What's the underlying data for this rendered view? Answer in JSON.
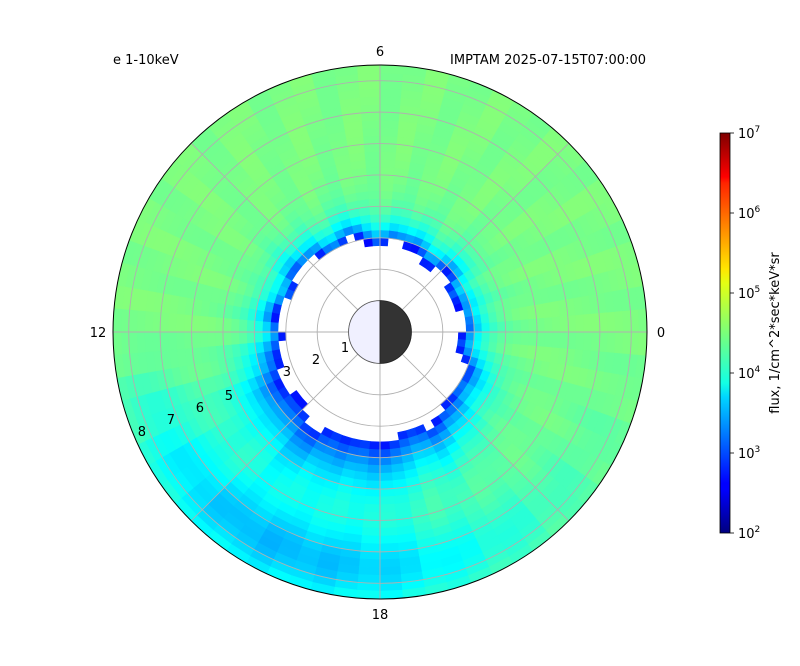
{
  "chart_data": {
    "type": "heatmap",
    "title_left": "e 1-10keV",
    "title_right": "IMPTAM 2025-07-15T07:00:00",
    "projection": "polar",
    "mlt_labels": [
      "6",
      "12",
      "18",
      "0"
    ],
    "radial_ticks": [
      "1",
      "2",
      "3",
      "5",
      "6",
      "7",
      "8"
    ],
    "radial_max": 8.5,
    "colorbar": {
      "label": "flux, 1/cm^2*sec*keV*sr",
      "scale": "log",
      "range": [
        100,
        10000000
      ],
      "ticks": [
        {
          "base": "10",
          "exp": "2"
        },
        {
          "base": "10",
          "exp": "3"
        },
        {
          "base": "10",
          "exp": "4"
        },
        {
          "base": "10",
          "exp": "5"
        },
        {
          "base": "10",
          "exp": "6"
        },
        {
          "base": "10",
          "exp": "7"
        }
      ],
      "colormap": "jet"
    },
    "field": {
      "background_flux": 30000,
      "inner_boundary_min_L": 2.6,
      "inner_boundary_max_L": 3.9,
      "low_flux_band_width": 0.5,
      "dusk_enhancement": true
    },
    "earth": {
      "dayside_color": "#f0f0ff",
      "nightside_color": "#333333"
    }
  }
}
